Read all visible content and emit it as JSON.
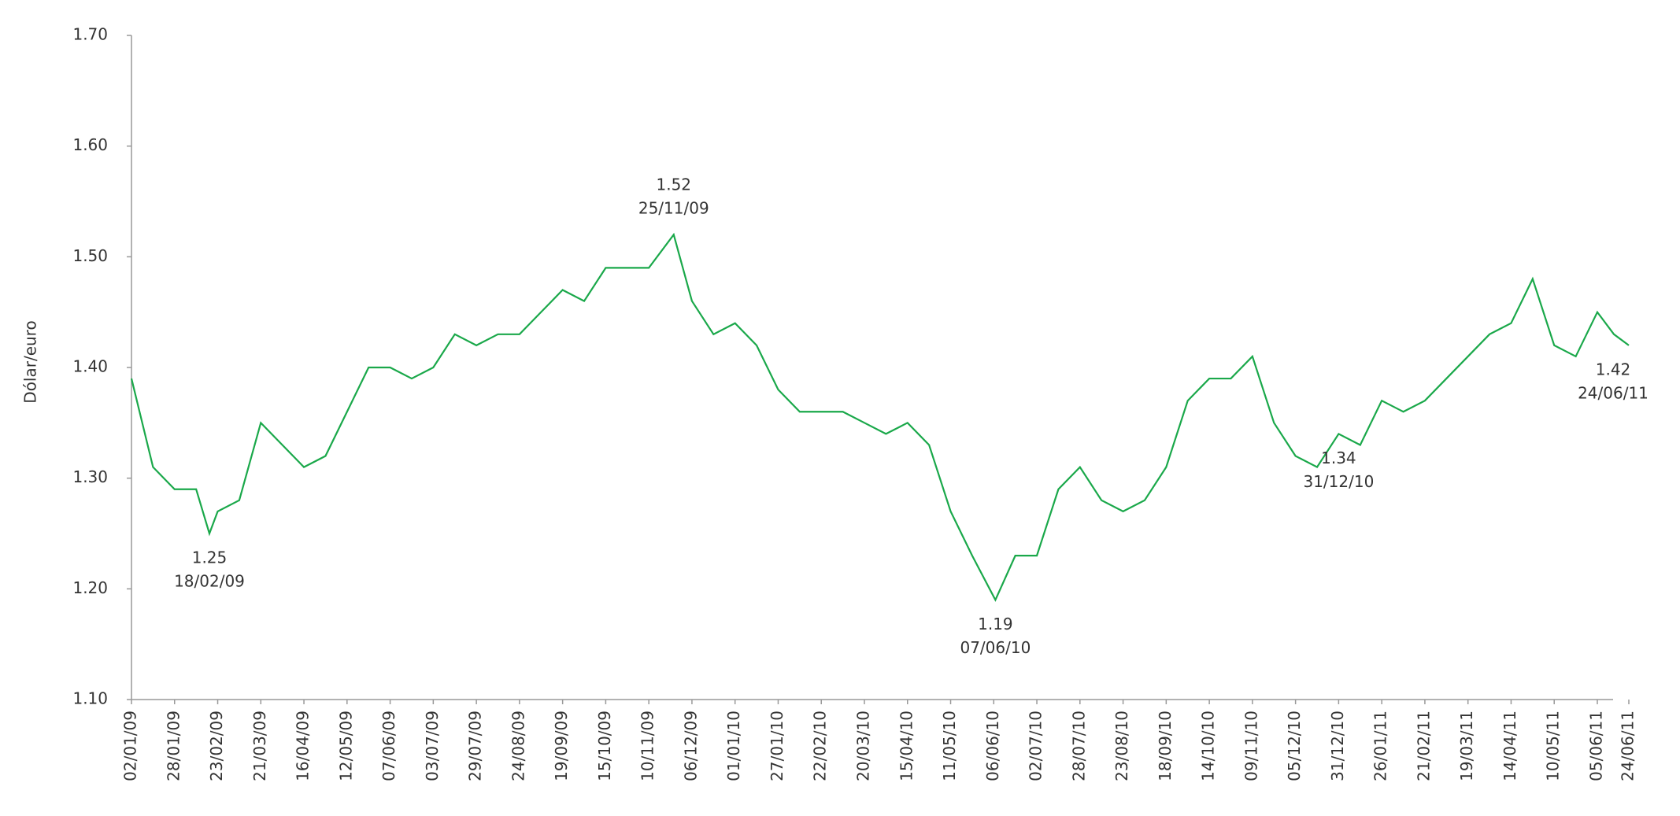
{
  "chart_data": {
    "type": "line",
    "y_label": "Dólar/euro",
    "color": "#1aa84a",
    "x": [
      "02/01/09",
      "15/01/09",
      "28/01/09",
      "10/02/09",
      "18/02/09",
      "23/02/09",
      "08/03/09",
      "21/03/09",
      "03/04/09",
      "16/04/09",
      "29/04/09",
      "12/05/09",
      "25/05/09",
      "07/06/09",
      "20/06/09",
      "03/07/09",
      "16/07/09",
      "29/07/09",
      "11/08/09",
      "24/08/09",
      "06/09/09",
      "19/09/09",
      "02/10/09",
      "15/10/09",
      "28/10/09",
      "10/11/09",
      "25/11/09",
      "06/12/09",
      "19/12/09",
      "01/01/10",
      "14/01/10",
      "27/01/10",
      "09/02/10",
      "22/02/10",
      "07/03/10",
      "20/03/10",
      "02/04/10",
      "15/04/10",
      "28/04/10",
      "11/05/10",
      "24/05/10",
      "07/06/10",
      "19/06/10",
      "02/07/10",
      "15/07/10",
      "28/07/10",
      "10/08/10",
      "23/08/10",
      "05/09/10",
      "18/09/10",
      "01/10/10",
      "14/10/10",
      "27/10/10",
      "09/11/10",
      "22/11/10",
      "05/12/10",
      "18/12/10",
      "31/12/10",
      "13/01/11",
      "26/01/11",
      "08/02/11",
      "21/02/11",
      "06/03/11",
      "19/03/11",
      "01/04/11",
      "14/04/11",
      "27/04/11",
      "10/05/11",
      "23/05/11",
      "05/06/11",
      "15/06/11",
      "24/06/11"
    ],
    "values": [
      1.39,
      1.31,
      1.29,
      1.29,
      1.25,
      1.27,
      1.28,
      1.35,
      1.33,
      1.31,
      1.32,
      1.36,
      1.4,
      1.4,
      1.39,
      1.4,
      1.43,
      1.42,
      1.43,
      1.43,
      1.45,
      1.47,
      1.46,
      1.49,
      1.49,
      1.49,
      1.52,
      1.46,
      1.43,
      1.44,
      1.42,
      1.38,
      1.36,
      1.36,
      1.36,
      1.35,
      1.34,
      1.35,
      1.33,
      1.27,
      1.23,
      1.19,
      1.23,
      1.23,
      1.29,
      1.31,
      1.28,
      1.27,
      1.28,
      1.31,
      1.37,
      1.39,
      1.39,
      1.41,
      1.35,
      1.32,
      1.31,
      1.34,
      1.33,
      1.37,
      1.36,
      1.37,
      1.39,
      1.41,
      1.43,
      1.44,
      1.48,
      1.42,
      1.41,
      1.45,
      1.43,
      1.42
    ],
    "xlim": [
      "02/01/09",
      "24/06/11"
    ],
    "xticks": [
      "02/01/09",
      "28/01/09",
      "23/02/09",
      "21/03/09",
      "16/04/09",
      "12/05/09",
      "07/06/09",
      "03/07/09",
      "29/07/09",
      "24/08/09",
      "19/09/09",
      "15/10/09",
      "10/11/09",
      "06/12/09",
      "01/01/10",
      "27/01/10",
      "22/02/10",
      "20/03/10",
      "15/04/10",
      "11/05/10",
      "06/06/10",
      "02/07/10",
      "28/07/10",
      "23/08/10",
      "18/09/10",
      "14/10/10",
      "09/11/10",
      "05/12/10",
      "31/12/10",
      "26/01/11",
      "21/02/11",
      "19/03/11",
      "14/04/11",
      "10/05/11",
      "05/06/11",
      "24/06/11"
    ],
    "ylim": [
      1.1,
      1.7
    ],
    "yticks": [
      {
        "value": 1.1,
        "label": "1.10"
      },
      {
        "value": 1.2,
        "label": "1.20"
      },
      {
        "value": 1.3,
        "label": "1.30"
      },
      {
        "value": 1.4,
        "label": "1.40"
      },
      {
        "value": 1.5,
        "label": "1.50"
      },
      {
        "value": 1.6,
        "label": "1.60"
      },
      {
        "value": 1.7,
        "label": "1.70"
      }
    ],
    "annotations": [
      {
        "value": 1.25,
        "date": "18/02/09"
      },
      {
        "value": 1.52,
        "date": "25/11/09"
      },
      {
        "value": 1.19,
        "date": "07/06/10"
      },
      {
        "value": 1.34,
        "date": "31/12/10"
      },
      {
        "value": 1.42,
        "date": "24/06/11"
      }
    ]
  }
}
